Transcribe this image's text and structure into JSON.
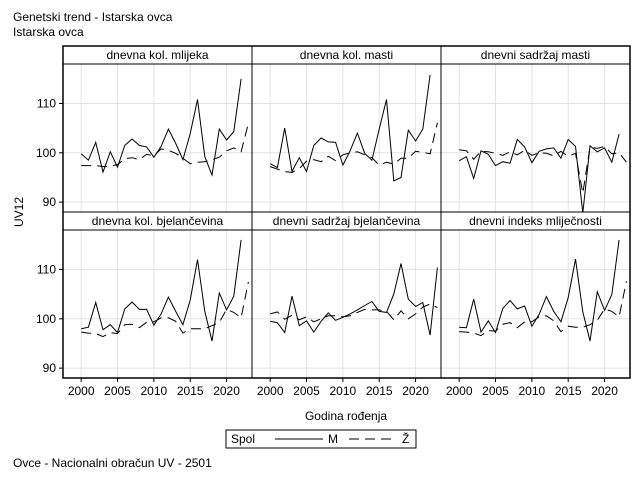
{
  "header": {
    "title": "Genetski trend - Istarska ovca",
    "subtitle": "Istarska ovca"
  },
  "footer": {
    "note": "Ovce - Nacionalni obračun UV - 2501"
  },
  "chart_data": {
    "type": "line",
    "xlabel": "Godina rođenja",
    "ylabel": "UV12",
    "xlim": [
      1997.5,
      2023.5
    ],
    "ylim": [
      88,
      118
    ],
    "xticks": [
      2000,
      2005,
      2010,
      2015,
      2020
    ],
    "yticks": [
      90,
      100,
      110
    ],
    "grid": true,
    "legend": {
      "title": "Spol",
      "placement": "bottom",
      "items": [
        {
          "label": "M",
          "dash": "solid"
        },
        {
          "label": "Ž",
          "dash": "dashed"
        }
      ]
    },
    "x": [
      2000,
      2001,
      2002,
      2003,
      2004,
      2005,
      2006,
      2007,
      2008,
      2009,
      2010,
      2011,
      2012,
      2013,
      2014,
      2015,
      2016,
      2017,
      2018,
      2019,
      2020,
      2021,
      2022,
      2023
    ],
    "panels": [
      {
        "title": "dnevna kol. mlijeka",
        "series": [
          {
            "name": "M",
            "values": [
              99.8,
              98.5,
              102.1,
              96.1,
              100.2,
              97.1,
              101.5,
              102.8,
              101.5,
              101.2,
              99.1,
              101.3,
              104.8,
              101.9,
              98.6,
              103.9,
              110.8,
              99.2,
              95.5,
              104.8,
              102.6,
              104.3,
              115.0,
              null
            ]
          },
          {
            "name": "Ž",
            "values": [
              97.4,
              97.4,
              97.4,
              97.2,
              97.3,
              97.6,
              98.8,
              99.0,
              98.6,
              99.7,
              99.4,
              100.8,
              100.5,
              99.9,
              98.9,
              97.8,
              98.1,
              98.2,
              98.6,
              99.1,
              100.4,
              101.0,
              100.2,
              106.0
            ]
          }
        ]
      },
      {
        "title": "dnevna kol. masti",
        "series": [
          {
            "name": "M",
            "values": [
              97.8,
              97.0,
              105.0,
              96.2,
              99.0,
              96.2,
              101.5,
              103.0,
              102.2,
              102.1,
              97.5,
              100.4,
              104.0,
              99.9,
              98.5,
              104.8,
              110.8,
              94.3,
              95.0,
              104.6,
              102.4,
              104.8,
              115.8,
              null
            ]
          },
          {
            "name": "Ž",
            "values": [
              97.2,
              96.7,
              96.2,
              96.0,
              96.8,
              98.3,
              98.6,
              98.2,
              99.3,
              98.4,
              99.6,
              100.0,
              100.2,
              99.6,
              99.0,
              97.5,
              98.1,
              97.7,
              98.9,
              98.9,
              100.3,
              100.1,
              99.8,
              106.1
            ]
          }
        ]
      },
      {
        "title": "dnevni sadržaj masti",
        "series": [
          {
            "name": "M",
            "values": [
              98.4,
              99.2,
              94.8,
              100.4,
              99.7,
              97.4,
              98.2,
              97.9,
              102.7,
              101.2,
              98.0,
              100.3,
              100.8,
              101.0,
              98.9,
              102.7,
              101.3,
              87.8,
              101.4,
              100.2,
              101.0,
              98.1,
              103.8,
              null
            ]
          },
          {
            "name": "Ž",
            "values": [
              100.6,
              100.4,
              98.7,
              100.3,
              100.2,
              99.9,
              99.5,
              100.2,
              99.6,
              100.5,
              99.5,
              100.0,
              99.9,
              99.4,
              100.3,
              99.3,
              99.9,
              91.8,
              101.2,
              100.9,
              101.3,
              99.8,
              100.0,
              98.1
            ]
          }
        ]
      },
      {
        "title": "dnevna kol. bjelančevina",
        "series": [
          {
            "name": "M",
            "values": [
              98.0,
              98.3,
              103.3,
              97.8,
              98.8,
              97.2,
              102.0,
              103.4,
              101.9,
              101.9,
              98.7,
              101.0,
              104.4,
              101.5,
              98.8,
              103.8,
              112.0,
              101.5,
              95.5,
              105.2,
              101.8,
              104.6,
              116.0,
              null
            ]
          },
          {
            "name": "Ž",
            "values": [
              97.3,
              97.1,
              97.0,
              96.4,
              97.2,
              97.0,
              98.8,
              98.9,
              98.2,
              99.3,
              99.4,
              100.2,
              100.2,
              99.5,
              97.1,
              98.0,
              98.0,
              98.0,
              98.6,
              99.3,
              101.9,
              101.3,
              100.2,
              107.5
            ]
          }
        ]
      },
      {
        "title": "dnevni sadržaj bjelančevina",
        "series": [
          {
            "name": "M",
            "values": [
              99.5,
              99.2,
              97.2,
              104.6,
              98.6,
              99.6,
              97.3,
              99.5,
              101.2,
              99.7,
              100.3,
              101.0,
              101.8,
              102.7,
              103.5,
              101.5,
              101.3,
              105.0,
              111.2,
              104.0,
              102.5,
              103.3,
              96.7,
              110.4
            ]
          },
          {
            "name": "Ž",
            "values": [
              101.0,
              101.4,
              99.9,
              100.7,
              99.8,
              100.4,
              99.4,
              100.0,
              100.6,
              100.6,
              100.4,
              100.6,
              101.3,
              101.9,
              101.8,
              101.8,
              101.5,
              99.8,
              101.6,
              100.0,
              101.0,
              102.4,
              103.0,
              102.3
            ]
          }
        ]
      },
      {
        "title": "dnevni indeks mliječnosti",
        "series": [
          {
            "name": "M",
            "values": [
              98.3,
              98.2,
              104.0,
              97.3,
              99.6,
              97.2,
              102.1,
              103.7,
              102.0,
              102.6,
              98.5,
              100.9,
              104.5,
              101.5,
              99.4,
              104.3,
              112.1,
              101.4,
              95.5,
              105.5,
              101.7,
              104.9,
              116.0,
              null
            ]
          },
          {
            "name": "Ž",
            "values": [
              97.4,
              97.3,
              97.1,
              96.6,
              97.6,
              97.5,
              98.9,
              99.2,
              98.2,
              99.4,
              99.4,
              100.4,
              100.6,
              99.6,
              97.4,
              98.5,
              98.3,
              98.3,
              98.8,
              99.7,
              102.0,
              101.5,
              100.4,
              107.6
            ]
          }
        ]
      }
    ]
  }
}
